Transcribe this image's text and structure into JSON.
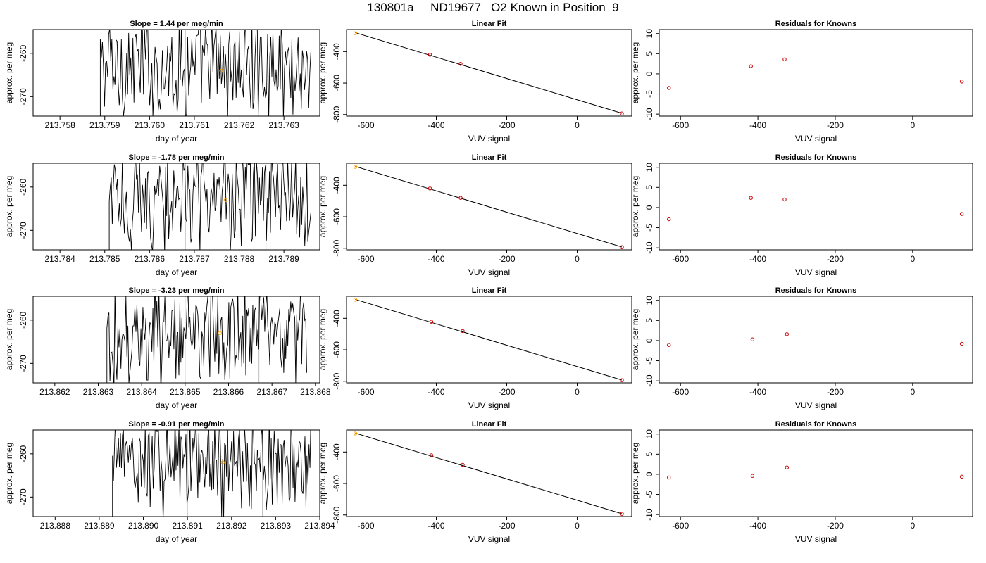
{
  "page_title": "130801a     ND19677   O2 Known in Position  9",
  "colors": {
    "trace": "#000000",
    "marker_orange": "#ffa500",
    "marker_red": "#cc0000",
    "vline": "#bebebe"
  },
  "chart_data": [
    {
      "type": "line",
      "title": "Slope =  1.44  per meg/min",
      "xlabel": "day of year",
      "ylabel": "approx. per meg",
      "xlim": [
        213.7574,
        213.7638
      ],
      "ylim": [
        -274.5,
        -254.5
      ],
      "xticks": [
        "213.758",
        "213.759",
        "213.760",
        "213.761",
        "213.762",
        "213.763"
      ],
      "yticks": [
        "-260",
        "-270"
      ],
      "trace_start": 213.7589,
      "trace_end": 213.7636,
      "marker": {
        "x": 213.7616,
        "y": -264
      },
      "vlines": [
        213.7608
      ]
    },
    {
      "type": "line",
      "title": "Linear Fit",
      "xlabel": "VUV signal",
      "ylabel": "approx. per meg",
      "xlim": [
        -655,
        155
      ],
      "ylim": [
        -810,
        -260
      ],
      "xticks": [
        "-600",
        "-400",
        "-200",
        "0"
      ],
      "yticks": [
        "-400",
        "-600",
        "-800"
      ],
      "fit": [
        [
          -630,
          -280
        ],
        [
          127,
          -792
        ]
      ],
      "points": [
        {
          "x": -630,
          "y": -283,
          "c": "orange"
        },
        {
          "x": -418,
          "y": -420,
          "c": "red"
        },
        {
          "x": -331,
          "y": -478,
          "c": "red"
        },
        {
          "x": 127,
          "y": -793,
          "c": "red"
        }
      ]
    },
    {
      "type": "scatter",
      "title": "Residuals for Knowns",
      "xlabel": "VUV signal",
      "ylabel": "approx. per meg",
      "xlim": [
        -655,
        155
      ],
      "ylim": [
        -10.5,
        11
      ],
      "xticks": [
        "-600",
        "-400",
        "-200",
        "0"
      ],
      "yticks": [
        "-10",
        "-5",
        "0",
        "5",
        "10"
      ],
      "points": [
        {
          "x": -630,
          "y": -3.5
        },
        {
          "x": -418,
          "y": 1.9
        },
        {
          "x": -331,
          "y": 3.6
        },
        {
          "x": 127,
          "y": -1.9
        }
      ]
    },
    {
      "type": "line",
      "title": "Slope =  -1.78  per meg/min",
      "xlabel": "day of year",
      "ylabel": "approx. per meg",
      "xlim": [
        213.7834,
        213.7898
      ],
      "ylim": [
        -274.5,
        -254.5
      ],
      "xticks": [
        "213.784",
        "213.785",
        "213.786",
        "213.787",
        "213.788",
        "213.789"
      ],
      "yticks": [
        "-260",
        "-270"
      ],
      "trace_start": 213.7851,
      "trace_end": 213.7896,
      "marker": {
        "x": 213.7877,
        "y": -263
      },
      "vlines": [
        213.7868,
        213.7886
      ]
    },
    {
      "type": "line",
      "title": "Linear Fit",
      "xlabel": "VUV signal",
      "ylabel": "approx. per meg",
      "xlim": [
        -655,
        155
      ],
      "ylim": [
        -810,
        -260
      ],
      "xticks": [
        "-600",
        "-400",
        "-200",
        "0"
      ],
      "yticks": [
        "-400",
        "-600",
        "-800"
      ],
      "fit": [
        [
          -630,
          -280
        ],
        [
          127,
          -792
        ]
      ],
      "points": [
        {
          "x": -630,
          "y": -283,
          "c": "orange"
        },
        {
          "x": -418,
          "y": -420,
          "c": "red"
        },
        {
          "x": -331,
          "y": -480,
          "c": "red"
        },
        {
          "x": 127,
          "y": -793,
          "c": "red"
        }
      ]
    },
    {
      "type": "scatter",
      "title": "Residuals for Knowns",
      "xlabel": "VUV signal",
      "ylabel": "approx. per meg",
      "xlim": [
        -655,
        155
      ],
      "ylim": [
        -10.5,
        11
      ],
      "xticks": [
        "-600",
        "-400",
        "-200",
        "0"
      ],
      "yticks": [
        "-10",
        "-5",
        "0",
        "5",
        "10"
      ],
      "points": [
        {
          "x": -630,
          "y": -2.9
        },
        {
          "x": -418,
          "y": 2.4
        },
        {
          "x": -331,
          "y": 2.0
        },
        {
          "x": 127,
          "y": -1.6
        }
      ]
    },
    {
      "type": "line",
      "title": "Slope =  -3.23  per meg/min",
      "xlabel": "day of year",
      "ylabel": "approx. per meg",
      "xlim": [
        213.8615,
        213.8681
      ],
      "ylim": [
        -274.5,
        -254.5
      ],
      "xticks": [
        "213.862",
        "213.863",
        "213.864",
        "213.865",
        "213.866",
        "213.867",
        "213.868"
      ],
      "yticks": [
        "-260",
        "-270"
      ],
      "trace_start": 213.8632,
      "trace_end": 213.8678,
      "marker": {
        "x": 213.8658,
        "y": -263
      },
      "vlines": [
        213.865,
        213.8667
      ]
    },
    {
      "type": "line",
      "title": "Linear Fit",
      "xlabel": "VUV signal",
      "ylabel": "approx. per meg",
      "xlim": [
        -655,
        155
      ],
      "ylim": [
        -810,
        -260
      ],
      "xticks": [
        "-600",
        "-400",
        "-200",
        "0"
      ],
      "yticks": [
        "-400",
        "-600",
        "-800"
      ],
      "fit": [
        [
          -630,
          -280
        ],
        [
          127,
          -792
        ]
      ],
      "points": [
        {
          "x": -630,
          "y": -282,
          "c": "orange"
        },
        {
          "x": -414,
          "y": -422,
          "c": "red"
        },
        {
          "x": -325,
          "y": -481,
          "c": "red"
        },
        {
          "x": 127,
          "y": -793,
          "c": "red"
        }
      ]
    },
    {
      "type": "scatter",
      "title": "Residuals for Knowns",
      "xlabel": "VUV signal",
      "ylabel": "approx. per meg",
      "xlim": [
        -655,
        155
      ],
      "ylim": [
        -10.5,
        11
      ],
      "xticks": [
        "-600",
        "-400",
        "-200",
        "0"
      ],
      "yticks": [
        "-10",
        "-5",
        "0",
        "5",
        "10"
      ],
      "points": [
        {
          "x": -630,
          "y": -1.1
        },
        {
          "x": -414,
          "y": 0.3
        },
        {
          "x": -325,
          "y": 1.6
        },
        {
          "x": 127,
          "y": -0.8
        }
      ]
    },
    {
      "type": "line",
      "title": "Slope =  -0.91  per meg/min",
      "xlabel": "day of year",
      "ylabel": "approx. per meg",
      "xlim": [
        213.8875,
        213.894
      ],
      "ylim": [
        -274.5,
        -254.5
      ],
      "xticks": [
        "213.888",
        "213.889",
        "213.890",
        "213.891",
        "213.892",
        "213.893",
        "213.894"
      ],
      "yticks": [
        "-260",
        "-270"
      ],
      "trace_start": 213.8893,
      "trace_end": 213.8938,
      "marker": {
        "x": 213.8918,
        "y": -262
      },
      "vlines": [
        213.891,
        213.8927
      ]
    },
    {
      "type": "line",
      "title": "Linear Fit",
      "xlabel": "VUV signal",
      "ylabel": "approx. per meg",
      "xlim": [
        -655,
        155
      ],
      "ylim": [
        -810,
        -260
      ],
      "xticks": [
        "-600",
        "-400",
        "-200",
        "0"
      ],
      "yticks": [
        "-400",
        "-600",
        "-800"
      ],
      "fit": [
        [
          -630,
          -280
        ],
        [
          127,
          -792
        ]
      ],
      "points": [
        {
          "x": -630,
          "y": -282,
          "c": "orange"
        },
        {
          "x": -414,
          "y": -421,
          "c": "red"
        },
        {
          "x": -325,
          "y": -481,
          "c": "red"
        },
        {
          "x": 127,
          "y": -793,
          "c": "red"
        }
      ]
    },
    {
      "type": "scatter",
      "title": "Residuals for Knowns",
      "xlabel": "VUV signal",
      "ylabel": "approx. per meg",
      "xlim": [
        -655,
        155
      ],
      "ylim": [
        -10.5,
        11
      ],
      "xticks": [
        "-600",
        "-400",
        "-200",
        "0"
      ],
      "yticks": [
        "-10",
        "-5",
        "0",
        "5",
        "10"
      ],
      "points": [
        {
          "x": -630,
          "y": -0.8
        },
        {
          "x": -414,
          "y": -0.4
        },
        {
          "x": -325,
          "y": 1.7
        },
        {
          "x": 127,
          "y": -0.6
        }
      ]
    }
  ]
}
